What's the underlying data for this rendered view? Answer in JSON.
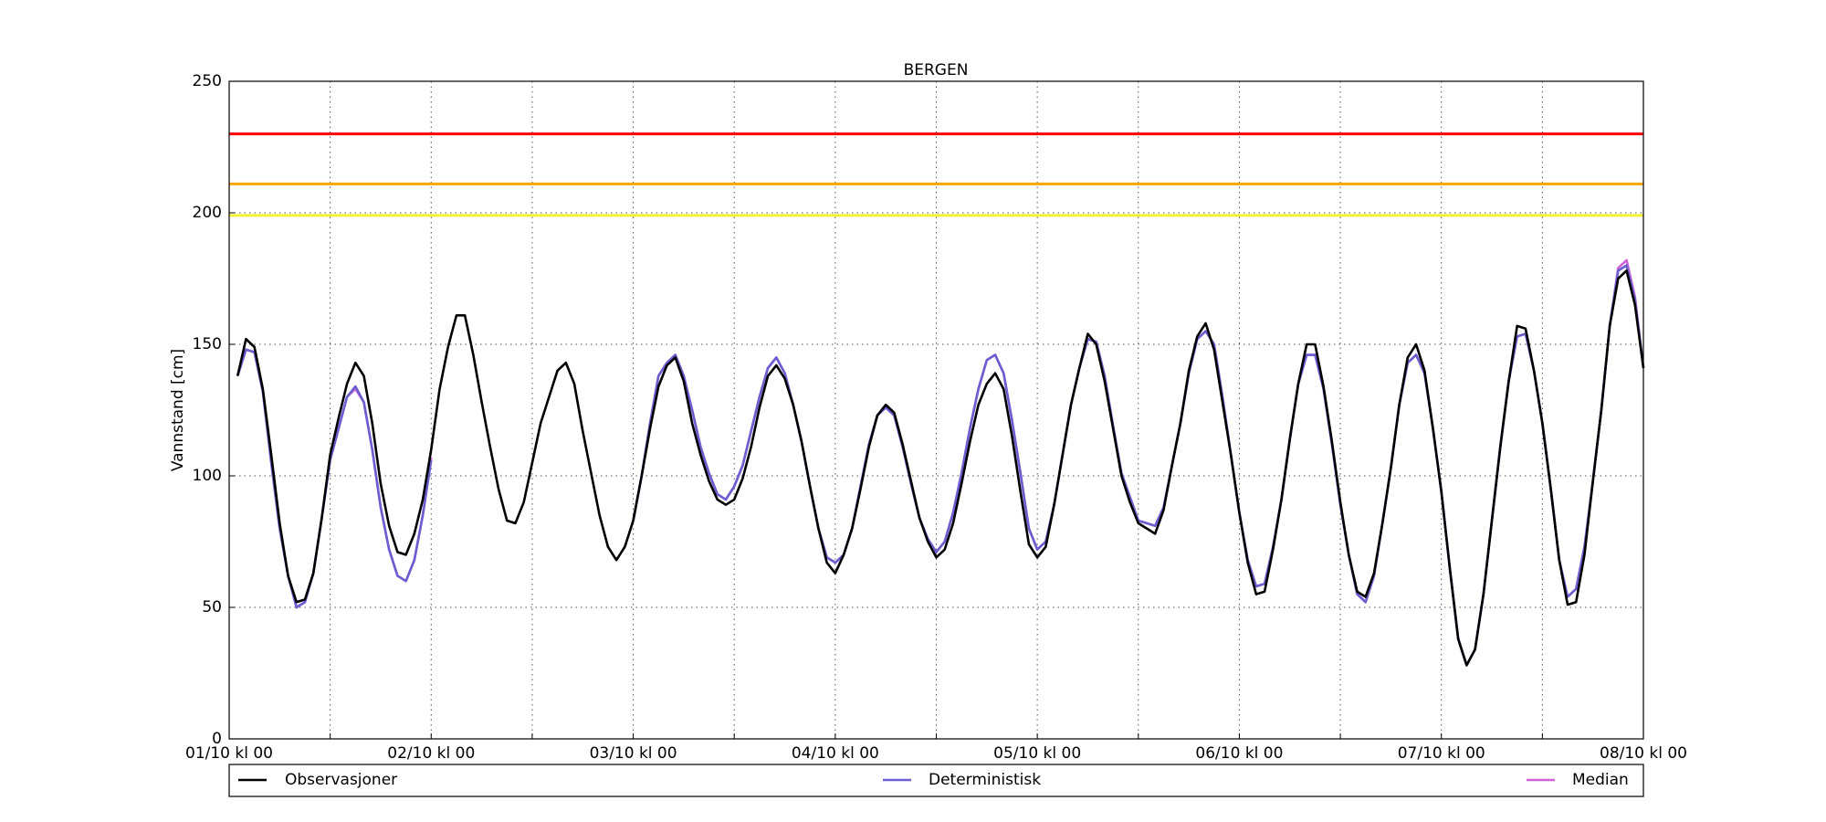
{
  "chart_data": {
    "type": "line",
    "title": "BERGEN",
    "y_label": "Vannstand [cm]",
    "x": [
      1,
      2,
      3,
      4,
      5,
      6,
      7,
      8,
      9,
      10,
      11,
      12,
      13,
      14,
      15,
      16,
      17,
      18,
      19,
      20,
      21,
      22,
      23,
      24,
      25,
      26,
      27,
      28,
      29,
      30,
      31,
      32,
      33,
      34,
      35,
      36,
      37,
      38,
      39,
      40,
      41,
      42,
      43,
      44,
      45,
      46,
      47,
      48,
      49,
      50,
      51,
      52,
      53,
      54,
      55,
      56,
      57,
      58,
      59,
      60,
      61,
      62,
      63,
      64,
      65,
      66,
      67,
      68,
      69,
      70,
      71,
      72,
      73,
      74,
      75,
      76,
      77,
      78,
      79,
      80,
      81,
      82,
      83,
      84,
      85,
      86,
      87,
      88,
      89,
      90,
      91,
      92,
      93,
      94,
      95,
      96,
      97,
      98,
      99,
      100,
      101,
      102,
      103,
      104,
      105,
      106,
      107,
      108,
      109,
      110,
      111,
      112,
      113,
      114,
      115,
      116,
      117,
      118,
      119,
      120,
      121,
      122,
      123,
      124,
      125,
      126,
      127,
      128,
      129,
      130,
      131,
      132,
      133,
      134,
      135,
      136,
      137,
      138,
      139,
      140,
      141,
      142,
      143,
      144,
      145,
      146,
      147,
      148,
      149,
      150,
      151,
      152,
      153,
      154,
      155,
      156,
      157,
      158,
      159,
      160,
      161,
      162,
      163,
      164,
      165,
      166,
      167,
      168
    ],
    "series": [
      {
        "name": "Median",
        "color": "#d063d8",
        "values": [
          138,
          148,
          147,
          132,
          105,
          80,
          62,
          50,
          52,
          63,
          84,
          106,
          118,
          130,
          133,
          128,
          110,
          88,
          72,
          62,
          60,
          68,
          85,
          107,
          null,
          null,
          null,
          null,
          null,
          null,
          null,
          null,
          null,
          null,
          null,
          null,
          null,
          null,
          null,
          null,
          null,
          null,
          null,
          null,
          null,
          null,
          null,
          83,
          100,
          120,
          138,
          143,
          146,
          138,
          125,
          111,
          101,
          93,
          91,
          96,
          104,
          117,
          130,
          141,
          145,
          139,
          127,
          113,
          96,
          80,
          69,
          67,
          70,
          80,
          96,
          112,
          123,
          126,
          123,
          111,
          97,
          84,
          76,
          71,
          75,
          86,
          101,
          118,
          133,
          144,
          146,
          139,
          121,
          101,
          80,
          72,
          75,
          89,
          108,
          127,
          141,
          152,
          151,
          138,
          119,
          101,
          92,
          83,
          82,
          81,
          88,
          104,
          120,
          139,
          152,
          155,
          150,
          130,
          108,
          86,
          68,
          58,
          59,
          73,
          91,
          114,
          135,
          146,
          146,
          133,
          112,
          89,
          70,
          55,
          52,
          62,
          82,
          103,
          127,
          143,
          146,
          139,
          118,
          94,
          65,
          38,
          28,
          34,
          55,
          83,
          111,
          136,
          153,
          154,
          140,
          120,
          95,
          68,
          54,
          57,
          73,
          98,
          125,
          157,
          179,
          182,
          168,
          141
        ]
      },
      {
        "name": "Deterministisk",
        "color": "#6a5fd0",
        "values": [
          138,
          148,
          147,
          132,
          105,
          80,
          62,
          50,
          52,
          63,
          84,
          106,
          118,
          130,
          134,
          128,
          110,
          88,
          72,
          62,
          60,
          68,
          85,
          106,
          null,
          null,
          null,
          null,
          null,
          null,
          null,
          null,
          null,
          null,
          null,
          null,
          null,
          null,
          null,
          null,
          null,
          null,
          null,
          null,
          null,
          null,
          null,
          83,
          100,
          120,
          138,
          143,
          146,
          138,
          125,
          111,
          101,
          93,
          91,
          96,
          104,
          117,
          130,
          141,
          145,
          139,
          127,
          113,
          96,
          80,
          69,
          67,
          70,
          80,
          96,
          112,
          123,
          126,
          123,
          111,
          97,
          84,
          76,
          71,
          75,
          86,
          101,
          118,
          133,
          144,
          146,
          139,
          121,
          101,
          80,
          72,
          75,
          89,
          108,
          127,
          141,
          152,
          151,
          138,
          119,
          101,
          92,
          83,
          82,
          81,
          88,
          104,
          120,
          139,
          152,
          155,
          150,
          130,
          108,
          86,
          68,
          58,
          59,
          73,
          91,
          114,
          135,
          146,
          146,
          133,
          112,
          89,
          70,
          55,
          52,
          62,
          82,
          103,
          127,
          143,
          146,
          139,
          118,
          94,
          65,
          38,
          28,
          34,
          55,
          83,
          111,
          136,
          153,
          154,
          140,
          120,
          95,
          68,
          54,
          57,
          73,
          98,
          125,
          157,
          178,
          180,
          167,
          141
        ]
      },
      {
        "name": "Observasjoner",
        "color": "#000000",
        "values": [
          138,
          152,
          149,
          133,
          108,
          82,
          62,
          52,
          53,
          63,
          84,
          108,
          122,
          135,
          143,
          138,
          120,
          97,
          81,
          71,
          70,
          78,
          91,
          110,
          133,
          149,
          161,
          161,
          146,
          128,
          111,
          95,
          83,
          82,
          90,
          105,
          120,
          130,
          140,
          143,
          135,
          117,
          101,
          85,
          73,
          68,
          73,
          83,
          100,
          118,
          134,
          142,
          145,
          136,
          120,
          108,
          98,
          91,
          89,
          91,
          99,
          111,
          126,
          138,
          142,
          137,
          127,
          113,
          96,
          80,
          67,
          63,
          70,
          80,
          95,
          111,
          123,
          127,
          124,
          112,
          98,
          84,
          75,
          69,
          72,
          82,
          97,
          113,
          127,
          135,
          139,
          133,
          115,
          94,
          74,
          69,
          73,
          89,
          108,
          127,
          141,
          154,
          150,
          136,
          118,
          100,
          90,
          82,
          80,
          78,
          87,
          104,
          120,
          140,
          153,
          158,
          148,
          128,
          108,
          86,
          67,
          55,
          56,
          72,
          91,
          114,
          135,
          150,
          150,
          134,
          113,
          90,
          70,
          56,
          54,
          63,
          82,
          103,
          127,
          145,
          150,
          140,
          118,
          94,
          65,
          38,
          28,
          34,
          55,
          83,
          111,
          136,
          157,
          156,
          140,
          120,
          95,
          68,
          51,
          52,
          70,
          98,
          125,
          157,
          175,
          178,
          165,
          141
        ]
      }
    ],
    "legend_order": [
      2,
      1,
      0
    ],
    "thresholds": [
      {
        "value": 230,
        "color": "#ff0000"
      },
      {
        "value": 211,
        "color": "#ffa500"
      },
      {
        "value": 199,
        "color": "#f2f230"
      }
    ],
    "xlim": [
      0,
      168
    ],
    "xticks": [
      {
        "value": 0,
        "label": "01/10 kl 00"
      },
      {
        "value": 24,
        "label": "02/10 kl 00"
      },
      {
        "value": 48,
        "label": "03/10 kl 00"
      },
      {
        "value": 72,
        "label": "04/10 kl 00"
      },
      {
        "value": 96,
        "label": "05/10 kl 00"
      },
      {
        "value": 120,
        "label": "06/10 kl 00"
      },
      {
        "value": 144,
        "label": "07/10 kl 00"
      },
      {
        "value": 168,
        "label": "08/10 kl 00"
      }
    ],
    "xminorticks": [
      12,
      36,
      60,
      84,
      108,
      132,
      156
    ],
    "ylim": [
      0,
      250
    ],
    "yticks": [
      0,
      50,
      100,
      150,
      200,
      250
    ],
    "grid": true
  }
}
